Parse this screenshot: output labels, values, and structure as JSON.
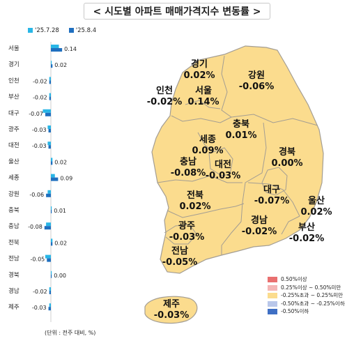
{
  "title": "< 시도별 아파트 매매가격지수 변동률 >",
  "chart_data": {
    "type": "bar",
    "orientation": "horizontal",
    "series": [
      {
        "name": "'25.7.28",
        "color": "#29b6e6",
        "values": [
          0.1,
          0.01,
          -0.02,
          -0.02,
          -0.1,
          -0.04,
          -0.04,
          0.02,
          0.05,
          -0.04,
          0.01,
          -0.06,
          0.02,
          -0.07,
          0.0,
          -0.02,
          -0.02
        ]
      },
      {
        "name": "'25.8.4",
        "color": "#1f6fbf",
        "values": [
          0.14,
          0.02,
          -0.02,
          -0.02,
          -0.07,
          -0.03,
          -0.03,
          0.02,
          0.09,
          -0.06,
          0.01,
          -0.08,
          0.02,
          -0.05,
          0.0,
          -0.02,
          -0.03
        ]
      }
    ],
    "categories": [
      "서울",
      "경기",
      "인천",
      "부산",
      "대구",
      "광주",
      "대전",
      "울산",
      "세종",
      "강원",
      "충북",
      "충남",
      "전북",
      "전남",
      "경북",
      "경남",
      "제주"
    ],
    "value_labels": [
      "0.14",
      "0.02",
      "-0.02",
      "-0.02",
      "-0.07",
      "-0.03",
      "-0.03",
      "0.02",
      "0.09",
      "-0.06",
      "0.01",
      "-0.08",
      "0.02",
      "-0.05",
      "0.00",
      "-0.02",
      "-0.03"
    ],
    "unit_note": "(단위 : 전주 대비, %)"
  },
  "map": {
    "fill": "#fbdc8e",
    "stroke": "#a39d93",
    "regions": [
      {
        "name": "경기",
        "value": "0.02%"
      },
      {
        "name": "강원",
        "value": "-0.06%"
      },
      {
        "name": "인천",
        "value": "-0.02%"
      },
      {
        "name": "서울",
        "value": "0.14%"
      },
      {
        "name": "충북",
        "value": "0.01%"
      },
      {
        "name": "세종",
        "value": "0.09%"
      },
      {
        "name": "충남",
        "value": "-0.08%"
      },
      {
        "name": "대전",
        "value": "-0.03%"
      },
      {
        "name": "경북",
        "value": "0.00%"
      },
      {
        "name": "대구",
        "value": "-0.07%"
      },
      {
        "name": "전북",
        "value": "0.02%"
      },
      {
        "name": "울산",
        "value": "0.02%"
      },
      {
        "name": "광주",
        "value": "-0.03%"
      },
      {
        "name": "경남",
        "value": "-0.02%"
      },
      {
        "name": "부산",
        "value": "-0.02%"
      },
      {
        "name": "전남",
        "value": "-0.05%"
      },
      {
        "name": "제주",
        "value": "-0.03%"
      }
    ],
    "legend": [
      {
        "label": "0.50%이상",
        "color": "#e97070"
      },
      {
        "label": "0.25%이상 ~ 0.50%미만",
        "color": "#f4b6b6"
      },
      {
        "label": "-0.25%초과 ~ 0.25%미만",
        "color": "#fbdc8e"
      },
      {
        "label": "-0.50%초과 ~ -0.25%이하",
        "color": "#b9c7ea"
      },
      {
        "label": "-0.50%이하",
        "color": "#3f6fc4"
      }
    ]
  }
}
